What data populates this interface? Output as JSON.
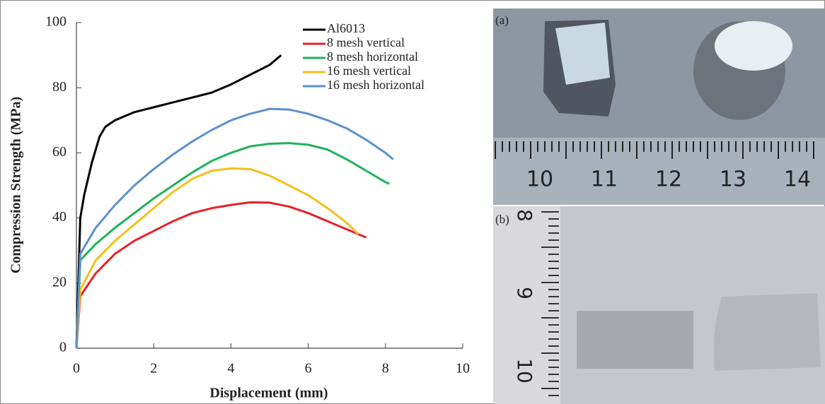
{
  "chart_data": {
    "type": "line",
    "x_label": "Displacement (mm)",
    "y_label": "Compression Strength (MPa)",
    "xlim": [
      0,
      10
    ],
    "xticks": [
      0,
      2,
      4,
      6,
      8,
      10
    ],
    "ylim": [
      0,
      100
    ],
    "yticks": [
      0,
      20,
      40,
      60,
      80,
      100
    ],
    "legend": "upper right",
    "series": [
      {
        "name": "Al6013",
        "color": "#000000",
        "x": [
          0,
          0.05,
          0.1,
          0.2,
          0.4,
          0.6,
          0.75,
          1,
          1.5,
          2,
          2.5,
          3,
          3.5,
          4,
          4.5,
          5,
          5.3
        ],
        "values": [
          0,
          20,
          40,
          47,
          57,
          65,
          68,
          70,
          72.5,
          74,
          75.5,
          77,
          78.5,
          81,
          84,
          87,
          90
        ]
      },
      {
        "name": "8 mesh vertical",
        "color": "#e8202a",
        "x": [
          0,
          0.1,
          0.5,
          1,
          1.5,
          2,
          2.5,
          3,
          3.5,
          4,
          4.5,
          5,
          5.5,
          6,
          6.5,
          7,
          7.5
        ],
        "values": [
          0,
          16,
          23,
          29,
          33,
          36,
          39,
          41.5,
          43,
          44,
          44.8,
          44.7,
          43.5,
          41.5,
          39,
          36.5,
          34
        ]
      },
      {
        "name": "8 mesh horizontal",
        "color": "#1fb25a",
        "x": [
          0,
          0.1,
          0.5,
          1,
          1.5,
          2,
          2.5,
          3,
          3.5,
          4,
          4.5,
          5,
          5.5,
          6,
          6.5,
          7,
          7.5,
          8,
          8.1
        ],
        "values": [
          0,
          27,
          32,
          37,
          41.5,
          46,
          50,
          54,
          57.5,
          60,
          62,
          62.8,
          63,
          62.5,
          61,
          58,
          54.5,
          51,
          50.5
        ]
      },
      {
        "name": "16 mesh vertical",
        "color": "#f5c018",
        "x": [
          0,
          0.1,
          0.5,
          1,
          1.5,
          2,
          2.5,
          3,
          3.5,
          4,
          4.5,
          5,
          5.5,
          6,
          6.5,
          7,
          7.3
        ],
        "values": [
          0,
          18,
          27,
          33,
          38,
          43,
          48,
          52,
          54.5,
          55.2,
          55,
          53,
          50,
          47,
          43,
          38.5,
          35
        ]
      },
      {
        "name": "16 mesh horizontal",
        "color": "#5b8fd0",
        "x": [
          0,
          0.1,
          0.5,
          1,
          1.5,
          2,
          2.5,
          3,
          3.5,
          4,
          4.5,
          5,
          5.5,
          6,
          6.5,
          7,
          7.5,
          8,
          8.2
        ],
        "values": [
          0,
          29,
          37,
          44,
          50,
          55,
          59.5,
          63.5,
          67,
          70,
          72,
          73.5,
          73.3,
          72,
          70,
          67.5,
          64,
          60,
          58
        ]
      }
    ]
  },
  "photos": {
    "a": {
      "label": "(a)",
      "ruler_labels": [
        10,
        11,
        12,
        13,
        14
      ]
    },
    "b": {
      "label": "(b)",
      "ruler_labels": [
        8,
        9,
        10
      ]
    }
  }
}
